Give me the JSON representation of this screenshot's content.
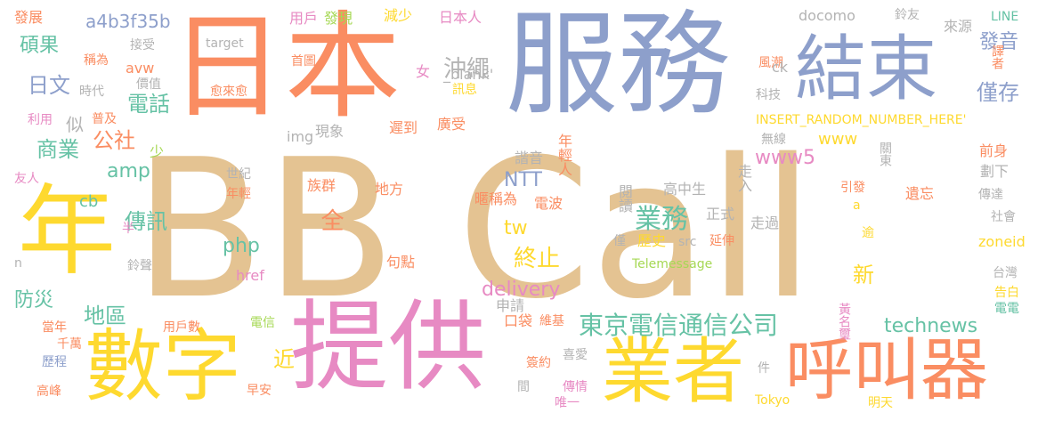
{
  "palette": {
    "tan": "#e4c392",
    "blue": "#8d9fcb",
    "orange": "#fa8d62",
    "green": "#66c2a5",
    "yellow": "#fed92f",
    "pink": "#e78ac3",
    "lime": "#a6d854",
    "gray": "#b3b3b3"
  },
  "words": [
    {
      "id": "bb-call",
      "text": "BB Call",
      "color": "tan"
    },
    {
      "id": "fuwu",
      "text": "服務",
      "color": "blue"
    },
    {
      "id": "riben",
      "text": "日本",
      "color": "orange"
    },
    {
      "id": "tigong",
      "text": "提供",
      "color": "pink"
    },
    {
      "id": "nian",
      "text": "年",
      "color": "yellow"
    },
    {
      "id": "shuzi",
      "text": "數字",
      "color": "yellow"
    },
    {
      "id": "yezhe",
      "text": "業者",
      "color": "yellow"
    },
    {
      "id": "hujiaoqi",
      "text": "呼叫器",
      "color": "orange"
    },
    {
      "id": "jieshu",
      "text": "結束",
      "color": "blue"
    },
    {
      "id": "dongjing",
      "text": "東京電信通信公司",
      "color": "green"
    },
    {
      "id": "yewu",
      "text": "業務",
      "color": "green"
    },
    {
      "id": "chongsheng",
      "text": "沖繩",
      "color": "gray"
    },
    {
      "id": "fayin",
      "text": "發音",
      "color": "blue"
    },
    {
      "id": "jincun",
      "text": "僅存",
      "color": "blue"
    },
    {
      "id": "shuoguo",
      "text": "碩果",
      "color": "green"
    },
    {
      "id": "riwen",
      "text": "日文",
      "color": "blue"
    },
    {
      "id": "dianhua",
      "text": "電話",
      "color": "green"
    },
    {
      "id": "shangye",
      "text": "商業",
      "color": "green"
    },
    {
      "id": "gongshe",
      "text": "公社",
      "color": "orange"
    },
    {
      "id": "chuanxun",
      "text": "傳訊",
      "color": "green"
    },
    {
      "id": "fangzai",
      "text": "防災",
      "color": "green"
    },
    {
      "id": "diqu",
      "text": "地區",
      "color": "green"
    },
    {
      "id": "zhongzhi",
      "text": "終止",
      "color": "yellow"
    },
    {
      "id": "quan",
      "text": "全",
      "color": "orange"
    },
    {
      "id": "xin",
      "text": "新",
      "color": "yellow"
    },
    {
      "id": "jin",
      "text": "近",
      "color": "yellow"
    },
    {
      "id": "si",
      "text": "似",
      "color": "gray"
    },
    {
      "id": "a4b3f35b",
      "text": "a4b3f35b",
      "color": "blue"
    },
    {
      "id": "fazhan",
      "text": "發展",
      "color": "orange"
    },
    {
      "id": "yonghu",
      "text": "用戶",
      "color": "pink"
    },
    {
      "id": "faxian",
      "text": "發現",
      "color": "lime"
    },
    {
      "id": "jianshao",
      "text": "減少",
      "color": "yellow"
    },
    {
      "id": "ribenren",
      "text": "日本人",
      "color": "pink"
    },
    {
      "id": "docomo",
      "text": "docomo",
      "color": "gray"
    },
    {
      "id": "lingyou",
      "text": "鈴友",
      "color": "gray"
    },
    {
      "id": "laiyuan",
      "text": "來源",
      "color": "gray"
    },
    {
      "id": "line",
      "text": "LINE",
      "color": "green"
    },
    {
      "id": "target",
      "text": "target",
      "color": "gray"
    },
    {
      "id": "jieshou",
      "text": "接受",
      "color": "gray"
    },
    {
      "id": "chengwei",
      "text": "稱為",
      "color": "orange"
    },
    {
      "id": "avw",
      "text": "avw",
      "color": "orange"
    },
    {
      "id": "shoutu",
      "text": "首圖",
      "color": "orange"
    },
    {
      "id": "fengchao",
      "text": "風潮",
      "color": "orange"
    },
    {
      "id": "yizhe",
      "text": "譯者",
      "color": "orange"
    },
    {
      "id": "ck",
      "text": "ck",
      "color": "gray"
    },
    {
      "id": "shidai",
      "text": "時代",
      "color": "gray"
    },
    {
      "id": "jiazhi",
      "text": "價值",
      "color": "gray"
    },
    {
      "id": "nu",
      "text": "女",
      "color": "pink"
    },
    {
      "id": "blank",
      "text": "_blank'",
      "color": "gray"
    },
    {
      "id": "yulaiyu",
      "text": "愈來愈",
      "color": "orange"
    },
    {
      "id": "xunxi",
      "text": "訊息",
      "color": "yellow"
    },
    {
      "id": "keji",
      "text": "科技",
      "color": "gray"
    },
    {
      "id": "liyong",
      "text": "利用",
      "color": "pink"
    },
    {
      "id": "puji",
      "text": "普及",
      "color": "orange"
    },
    {
      "id": "insert",
      "text": "INSERT_RANDOM_NUMBER_HERE'",
      "color": "yellow"
    },
    {
      "id": "img",
      "text": "img",
      "color": "gray"
    },
    {
      "id": "xianxiang",
      "text": "現象",
      "color": "gray"
    },
    {
      "id": "chidao",
      "text": "遲到",
      "color": "orange"
    },
    {
      "id": "guangshou",
      "text": "廣受",
      "color": "orange"
    },
    {
      "id": "wuxian",
      "text": "無線",
      "color": "gray"
    },
    {
      "id": "www",
      "text": "www",
      "color": "yellow"
    },
    {
      "id": "qianshen",
      "text": "前身",
      "color": "orange"
    },
    {
      "id": "shao",
      "text": "少",
      "color": "lime"
    },
    {
      "id": "amp",
      "text": "amp",
      "color": "green"
    },
    {
      "id": "xieyin",
      "text": "諧音",
      "color": "gray"
    },
    {
      "id": "nianqingren",
      "text": "年輕人",
      "color": "orange"
    },
    {
      "id": "guandong",
      "text": "關東",
      "color": "gray"
    },
    {
      "id": "youren",
      "text": "友人",
      "color": "pink"
    },
    {
      "id": "shiji",
      "text": "世紀",
      "color": "gray"
    },
    {
      "id": "www5",
      "text": "www5",
      "color": "pink"
    },
    {
      "id": "zouru",
      "text": "走入",
      "color": "gray"
    },
    {
      "id": "huaxia",
      "text": "劃下",
      "color": "gray"
    },
    {
      "id": "cb",
      "text": "cb",
      "color": "green"
    },
    {
      "id": "zuqun",
      "text": "族群",
      "color": "orange"
    },
    {
      "id": "ntt",
      "text": "NTT",
      "color": "blue"
    },
    {
      "id": "gaozhongsheng",
      "text": "高中生",
      "color": "gray"
    },
    {
      "id": "yuedu",
      "text": "閱讀",
      "color": "gray"
    },
    {
      "id": "nianqing",
      "text": "年輕",
      "color": "orange"
    },
    {
      "id": "difang",
      "text": "地方",
      "color": "orange"
    },
    {
      "id": "nichengwei",
      "text": "暱稱為",
      "color": "orange"
    },
    {
      "id": "dianbo",
      "text": "電波",
      "color": "orange"
    },
    {
      "id": "yinfa",
      "text": "引發",
      "color": "orange"
    },
    {
      "id": "yiwang",
      "text": "遺忘",
      "color": "orange"
    },
    {
      "id": "chuanda",
      "text": "傳達",
      "color": "gray"
    },
    {
      "id": "a",
      "text": "a",
      "color": "yellow"
    },
    {
      "id": "tw",
      "text": "tw",
      "color": "yellow"
    },
    {
      "id": "zhengshi",
      "text": "正式",
      "color": "gray"
    },
    {
      "id": "zouguo",
      "text": "走過",
      "color": "gray"
    },
    {
      "id": "shehui",
      "text": "社會",
      "color": "gray"
    },
    {
      "id": "ban",
      "text": "半",
      "color": "pink"
    },
    {
      "id": "php",
      "text": "php",
      "color": "green"
    },
    {
      "id": "jin2",
      "text": "僅",
      "color": "gray"
    },
    {
      "id": "lishi",
      "text": "歷史",
      "color": "yellow"
    },
    {
      "id": "src",
      "text": "src",
      "color": "gray"
    },
    {
      "id": "yanshen",
      "text": "延伸",
      "color": "orange"
    },
    {
      "id": "yu",
      "text": "逾",
      "color": "yellow"
    },
    {
      "id": "zoneid",
      "text": "zoneid",
      "color": "yellow"
    },
    {
      "id": "n",
      "text": "n",
      "color": "gray"
    },
    {
      "id": "lingsheng",
      "text": "鈴聲",
      "color": "gray"
    },
    {
      "id": "juzhi",
      "text": "句點",
      "color": "orange"
    },
    {
      "id": "telemessage",
      "text": "Telemessage",
      "color": "lime"
    },
    {
      "id": "href",
      "text": "href",
      "color": "pink"
    },
    {
      "id": "taiwan",
      "text": "台灣",
      "color": "gray"
    },
    {
      "id": "gaobai",
      "text": "告白",
      "color": "yellow"
    },
    {
      "id": "delivery",
      "text": "delivery",
      "color": "pink"
    },
    {
      "id": "shenqing",
      "text": "申請",
      "color": "gray"
    },
    {
      "id": "dianya",
      "text": "電電",
      "color": "green"
    },
    {
      "id": "koudai",
      "text": "口袋",
      "color": "orange"
    },
    {
      "id": "weiji",
      "text": "維基",
      "color": "orange"
    },
    {
      "id": "huangmingli",
      "text": "黃名璽",
      "color": "pink"
    },
    {
      "id": "technews",
      "text": "technews",
      "color": "green"
    },
    {
      "id": "dangnian",
      "text": "當年",
      "color": "orange"
    },
    {
      "id": "yonghushu",
      "text": "用戶數",
      "color": "orange"
    },
    {
      "id": "dianxin",
      "text": "電信",
      "color": "lime"
    },
    {
      "id": "qianwan",
      "text": "千萬",
      "color": "orange"
    },
    {
      "id": "licheng",
      "text": "歷程",
      "color": "blue"
    },
    {
      "id": "gaofeng",
      "text": "高峰",
      "color": "orange"
    },
    {
      "id": "zaoan",
      "text": "早安",
      "color": "orange"
    },
    {
      "id": "qianyue",
      "text": "簽約",
      "color": "orange"
    },
    {
      "id": "xiai",
      "text": "喜愛",
      "color": "gray"
    },
    {
      "id": "jian",
      "text": "件",
      "color": "gray"
    },
    {
      "id": "jian2",
      "text": "間",
      "color": "gray"
    },
    {
      "id": "chuanqing",
      "text": "傳情",
      "color": "pink"
    },
    {
      "id": "weiyi",
      "text": "唯一",
      "color": "pink"
    },
    {
      "id": "tokyo",
      "text": "Tokyo",
      "color": "yellow"
    },
    {
      "id": "mingtian",
      "text": "明天",
      "color": "yellow"
    }
  ]
}
